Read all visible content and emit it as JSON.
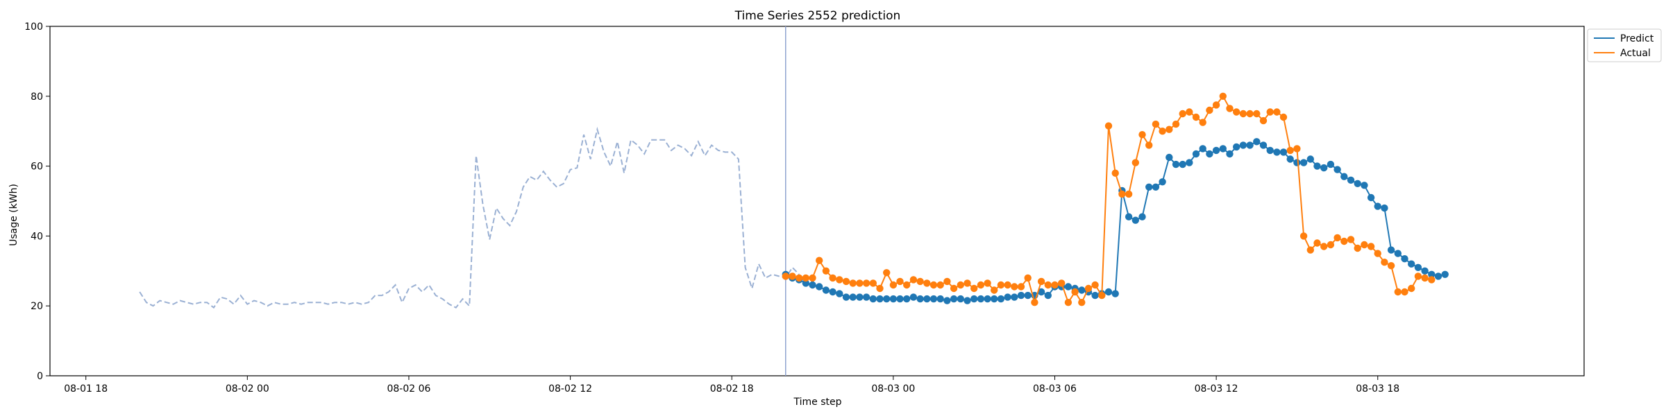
{
  "chart_data": {
    "type": "line",
    "title": "Time Series 2552 prediction",
    "xlabel": "Time step",
    "ylabel": "Usage (kWh)",
    "ylim": [
      0,
      100
    ],
    "xlim": [
      "2024-08-01 16:40",
      "2024-08-04 01:40"
    ],
    "y_ticks": [
      0,
      20,
      40,
      60,
      80,
      100
    ],
    "x_ticks": [
      {
        "t": "2024-08-01 18:00",
        "label": "08-01 18"
      },
      {
        "t": "2024-08-02 00:00",
        "label": "08-02 00"
      },
      {
        "t": "2024-08-02 06:00",
        "label": "08-02 06"
      },
      {
        "t": "2024-08-02 12:00",
        "label": "08-02 12"
      },
      {
        "t": "2024-08-02 18:00",
        "label": "08-02 18"
      },
      {
        "t": "2024-08-03 00:00",
        "label": "08-03 00"
      },
      {
        "t": "2024-08-03 06:00",
        "label": "08-03 06"
      },
      {
        "t": "2024-08-03 12:00",
        "label": "08-03 12"
      },
      {
        "t": "2024-08-03 18:00",
        "label": "08-03 18"
      }
    ],
    "grid": false,
    "legend_position": "top-right (outside)",
    "split_time": "2024-08-02 20:00",
    "history": {
      "start": "2024-08-01 20:00",
      "interval_minutes": 15,
      "color": "#9ab0d3",
      "style": "dashed",
      "values": [
        24,
        21,
        20,
        21.5,
        21,
        20.5,
        21.5,
        21,
        20.5,
        21,
        21,
        19.5,
        22.5,
        22,
        20.5,
        23,
        20.5,
        21.5,
        21,
        20,
        21,
        20.5,
        20.5,
        21,
        20.5,
        21,
        21,
        21,
        20.5,
        21,
        21,
        20.5,
        21,
        20.5,
        21,
        23,
        23,
        24,
        26,
        21,
        25,
        26,
        24,
        26,
        23,
        22,
        20.5,
        19.5,
        22,
        20,
        63,
        49,
        39,
        48,
        45,
        43,
        47,
        54,
        57,
        56,
        58.5,
        56,
        54,
        55,
        59,
        59.5,
        69,
        62,
        70.5,
        64,
        60,
        67,
        58,
        67.5,
        66,
        63.5,
        67.5,
        67.5,
        67.5,
        64.5,
        66,
        65,
        63,
        67,
        63,
        66,
        64.5,
        64,
        64,
        62,
        31,
        25,
        32,
        28,
        29,
        28.5,
        28,
        31,
        29
      ]
    },
    "series": [
      {
        "name": "Predict",
        "color": "#1f77b4",
        "start": "2024-08-02 20:00",
        "interval_minutes": 15,
        "values": [
          29,
          28,
          27.5,
          26.5,
          26,
          25.5,
          24.5,
          24,
          23.5,
          22.5,
          22.5,
          22.5,
          22.5,
          22,
          22,
          22,
          22,
          22,
          22,
          22.5,
          22,
          22,
          22,
          22,
          21.5,
          22,
          22,
          21.5,
          22,
          22,
          22,
          22,
          22,
          22.5,
          22.5,
          23,
          23,
          23,
          24,
          23,
          25.5,
          25.5,
          25.5,
          25,
          24.5,
          24,
          23,
          23.5,
          24,
          23.5,
          53,
          45.5,
          44.5,
          45.5,
          54,
          54,
          55.5,
          62.5,
          60.5,
          60.5,
          61,
          63.5,
          65,
          63.5,
          64.5,
          65,
          63.5,
          65.5,
          66,
          66,
          67,
          66,
          64.5,
          64,
          64,
          62,
          61,
          61,
          62,
          60,
          59.5,
          60.5,
          59,
          57,
          56,
          55,
          54.5,
          51,
          48.5,
          48,
          36,
          35,
          33.5,
          32,
          31,
          30,
          29,
          28.5,
          29
        ]
      },
      {
        "name": "Actual",
        "color": "#ff7f0e",
        "start": "2024-08-02 20:00",
        "interval_minutes": 15,
        "values": [
          28.5,
          28.5,
          28,
          28,
          28,
          33,
          30,
          28,
          27.5,
          27,
          26.5,
          26.5,
          26.5,
          26.5,
          25,
          29.5,
          26,
          27,
          26,
          27.5,
          27,
          26.5,
          26,
          26,
          27,
          25,
          26,
          26.5,
          25,
          26,
          26.5,
          24.5,
          26,
          26,
          25.5,
          25.5,
          28,
          21,
          27,
          26,
          26,
          26.5,
          21,
          24,
          21,
          25,
          26,
          23,
          71.5,
          58,
          52,
          52,
          61,
          69,
          66,
          72,
          70,
          70.5,
          72,
          75,
          75.5,
          74,
          72.5,
          76,
          77.5,
          80,
          76.5,
          75.5,
          75,
          75,
          75,
          73,
          75.5,
          75.5,
          74,
          64.5,
          65,
          40,
          36,
          38,
          37,
          37.5,
          39.5,
          38.5,
          39,
          36.5,
          37.5,
          37,
          35,
          32.5,
          31.5,
          24,
          24,
          25,
          28.5,
          28,
          27.5
        ]
      }
    ]
  }
}
